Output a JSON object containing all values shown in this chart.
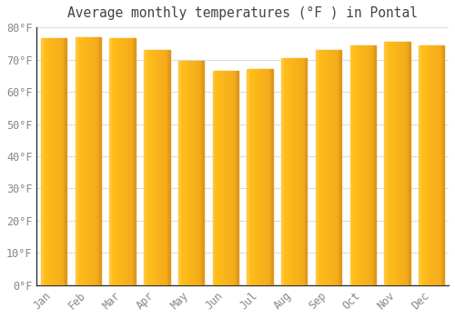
{
  "title": "Average monthly temperatures (°F ) in Pontal",
  "months": [
    "Jan",
    "Feb",
    "Mar",
    "Apr",
    "May",
    "Jun",
    "Jul",
    "Aug",
    "Sep",
    "Oct",
    "Nov",
    "Dec"
  ],
  "values": [
    76.5,
    77.0,
    76.5,
    73.0,
    69.5,
    66.5,
    67.0,
    70.5,
    73.0,
    74.5,
    75.5,
    74.5
  ],
  "bar_color_left": "#F5A623",
  "bar_color_right": "#E8920F",
  "background_color": "#FFFFFF",
  "grid_color": "#DDDDDD",
  "title_color": "#444444",
  "tick_color": "#888888",
  "spine_color": "#333333",
  "ylim": [
    0,
    80
  ],
  "yticks": [
    0,
    10,
    20,
    30,
    40,
    50,
    60,
    70,
    80
  ],
  "title_fontsize": 10.5,
  "tick_fontsize": 8.5,
  "bar_width": 0.75
}
